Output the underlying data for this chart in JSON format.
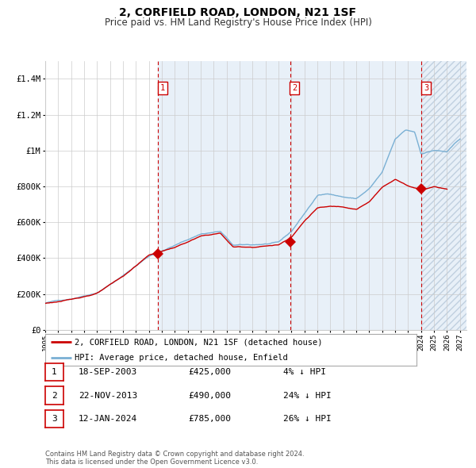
{
  "title": "2, CORFIELD ROAD, LONDON, N21 1SF",
  "subtitle": "Price paid vs. HM Land Registry's House Price Index (HPI)",
  "sale_label": "2, CORFIELD ROAD, LONDON, N21 1SF (detached house)",
  "hpi_label": "HPI: Average price, detached house, Enfield",
  "sale_color": "#cc0000",
  "hpi_color": "#7ab0d4",
  "hpi_fill_color": "#ddeeff",
  "background_color": "#ffffff",
  "grid_color": "#cccccc",
  "transactions": [
    {
      "num": 1,
      "date": "18-SEP-2003",
      "price": 425000,
      "pct": "4%",
      "x_year": 2003.72
    },
    {
      "num": 2,
      "date": "22-NOV-2013",
      "price": 490000,
      "pct": "24%",
      "x_year": 2013.89
    },
    {
      "num": 3,
      "date": "12-JAN-2024",
      "price": 785000,
      "pct": "26%",
      "x_year": 2024.04
    }
  ],
  "ylim": [
    0,
    1500000
  ],
  "xlim_start": 1995.0,
  "xlim_end": 2027.5,
  "yticks": [
    0,
    200000,
    400000,
    600000,
    800000,
    1000000,
    1200000,
    1400000
  ],
  "ytick_labels": [
    "£0",
    "£200K",
    "£400K",
    "£600K",
    "£800K",
    "£1M",
    "£1.2M",
    "£1.4M"
  ],
  "xticks": [
    1995,
    1996,
    1997,
    1998,
    1999,
    2000,
    2001,
    2002,
    2003,
    2004,
    2005,
    2006,
    2007,
    2008,
    2009,
    2010,
    2011,
    2012,
    2013,
    2014,
    2015,
    2016,
    2017,
    2018,
    2019,
    2020,
    2021,
    2022,
    2023,
    2024,
    2025,
    2026,
    2027
  ],
  "footnote": "Contains HM Land Registry data © Crown copyright and database right 2024.\nThis data is licensed under the Open Government Licence v3.0."
}
